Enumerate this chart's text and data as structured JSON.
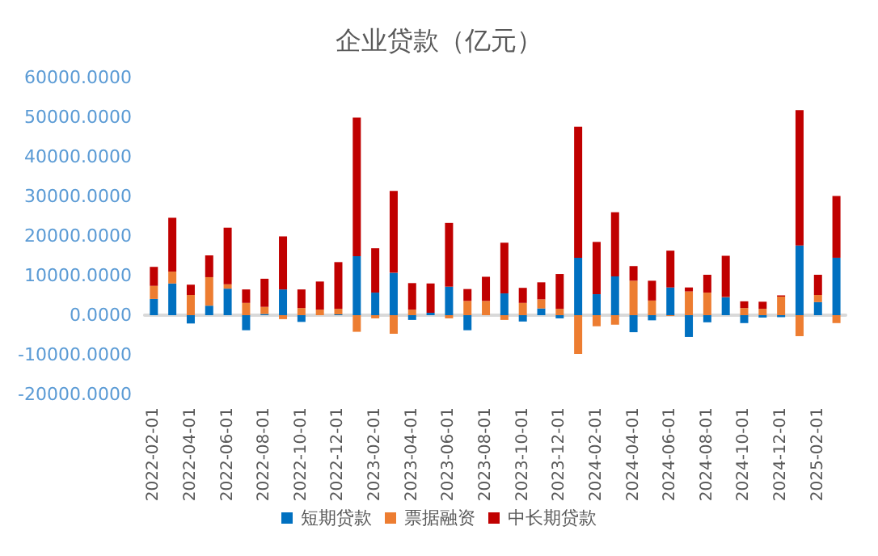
{
  "chart_data": {
    "type": "bar",
    "title": "企业贷款（亿元）",
    "stacked": true,
    "legend": "bottom",
    "categories": [
      "2022-02-01",
      null,
      "2022-04-01",
      null,
      "2022-06-01",
      null,
      "2022-08-01",
      null,
      "2022-10-01",
      null,
      "2022-12-01",
      null,
      "2023-02-01",
      null,
      "2023-04-01",
      null,
      "2023-06-01",
      null,
      "2023-08-01",
      null,
      "2023-10-01",
      null,
      "2023-12-01",
      null,
      "2024-02-01",
      null,
      "2024-04-01",
      null,
      "2024-06-01",
      null,
      "2024-08-01",
      null,
      "2024-10-01",
      null,
      "2024-12-01",
      null,
      "2025-02-01",
      null
    ],
    "ylim": [
      -20000,
      60000
    ],
    "yticks": [
      {
        "value": -20000,
        "label": "-20000.0000"
      },
      {
        "value": -10000,
        "label": "-10000.0000"
      },
      {
        "value": 0,
        "label": "0.0000"
      },
      {
        "value": 10000,
        "label": "10000.0000"
      },
      {
        "value": 20000,
        "label": "20000.0000"
      },
      {
        "value": 30000,
        "label": "30000.0000"
      },
      {
        "value": 40000,
        "label": "40000.0000"
      },
      {
        "value": 50000,
        "label": "50000.0000"
      },
      {
        "value": 60000,
        "label": "60000.0000"
      }
    ],
    "series": [
      {
        "name": "短期贷款",
        "color": "#0070c0",
        "values": [
          4100,
          8000,
          -2100,
          2400,
          6700,
          -3800,
          300,
          6500,
          -1700,
          null,
          200,
          14900,
          5700,
          10700,
          -1200,
          600,
          7200,
          -3800,
          null,
          5500,
          -1600,
          1700,
          -800,
          14500,
          5300,
          9800,
          -4300,
          -1300,
          7000,
          -5500,
          -1800,
          4500,
          -2000,
          -600,
          -500,
          17600,
          3300,
          14500
        ]
      },
      {
        "name": "票据融资",
        "color": "#ed7d31",
        "values": [
          3300,
          3000,
          5100,
          7200,
          1100,
          3100,
          1800,
          -1000,
          1800,
          1400,
          1400,
          -4200,
          -800,
          -4700,
          1400,
          null,
          -800,
          3600,
          3600,
          -1200,
          3100,
          2300,
          1600,
          -9800,
          -2800,
          -2400,
          8700,
          3700,
          -200,
          6000,
          5700,
          100,
          1800,
          1600,
          4700,
          -5300,
          1800,
          -2000
        ]
      },
      {
        "name": "中长期贷款",
        "color": "#c00000",
        "values": [
          4800,
          13600,
          2600,
          5500,
          14300,
          3400,
          7100,
          13400,
          4700,
          7100,
          11800,
          35000,
          11200,
          20700,
          6700,
          7400,
          16100,
          3000,
          6100,
          12800,
          3800,
          4300,
          8800,
          33100,
          13200,
          16200,
          3700,
          5000,
          9300,
          1000,
          4500,
          10400,
          1700,
          1800,
          300,
          34200,
          5100,
          15600
        ]
      }
    ]
  }
}
